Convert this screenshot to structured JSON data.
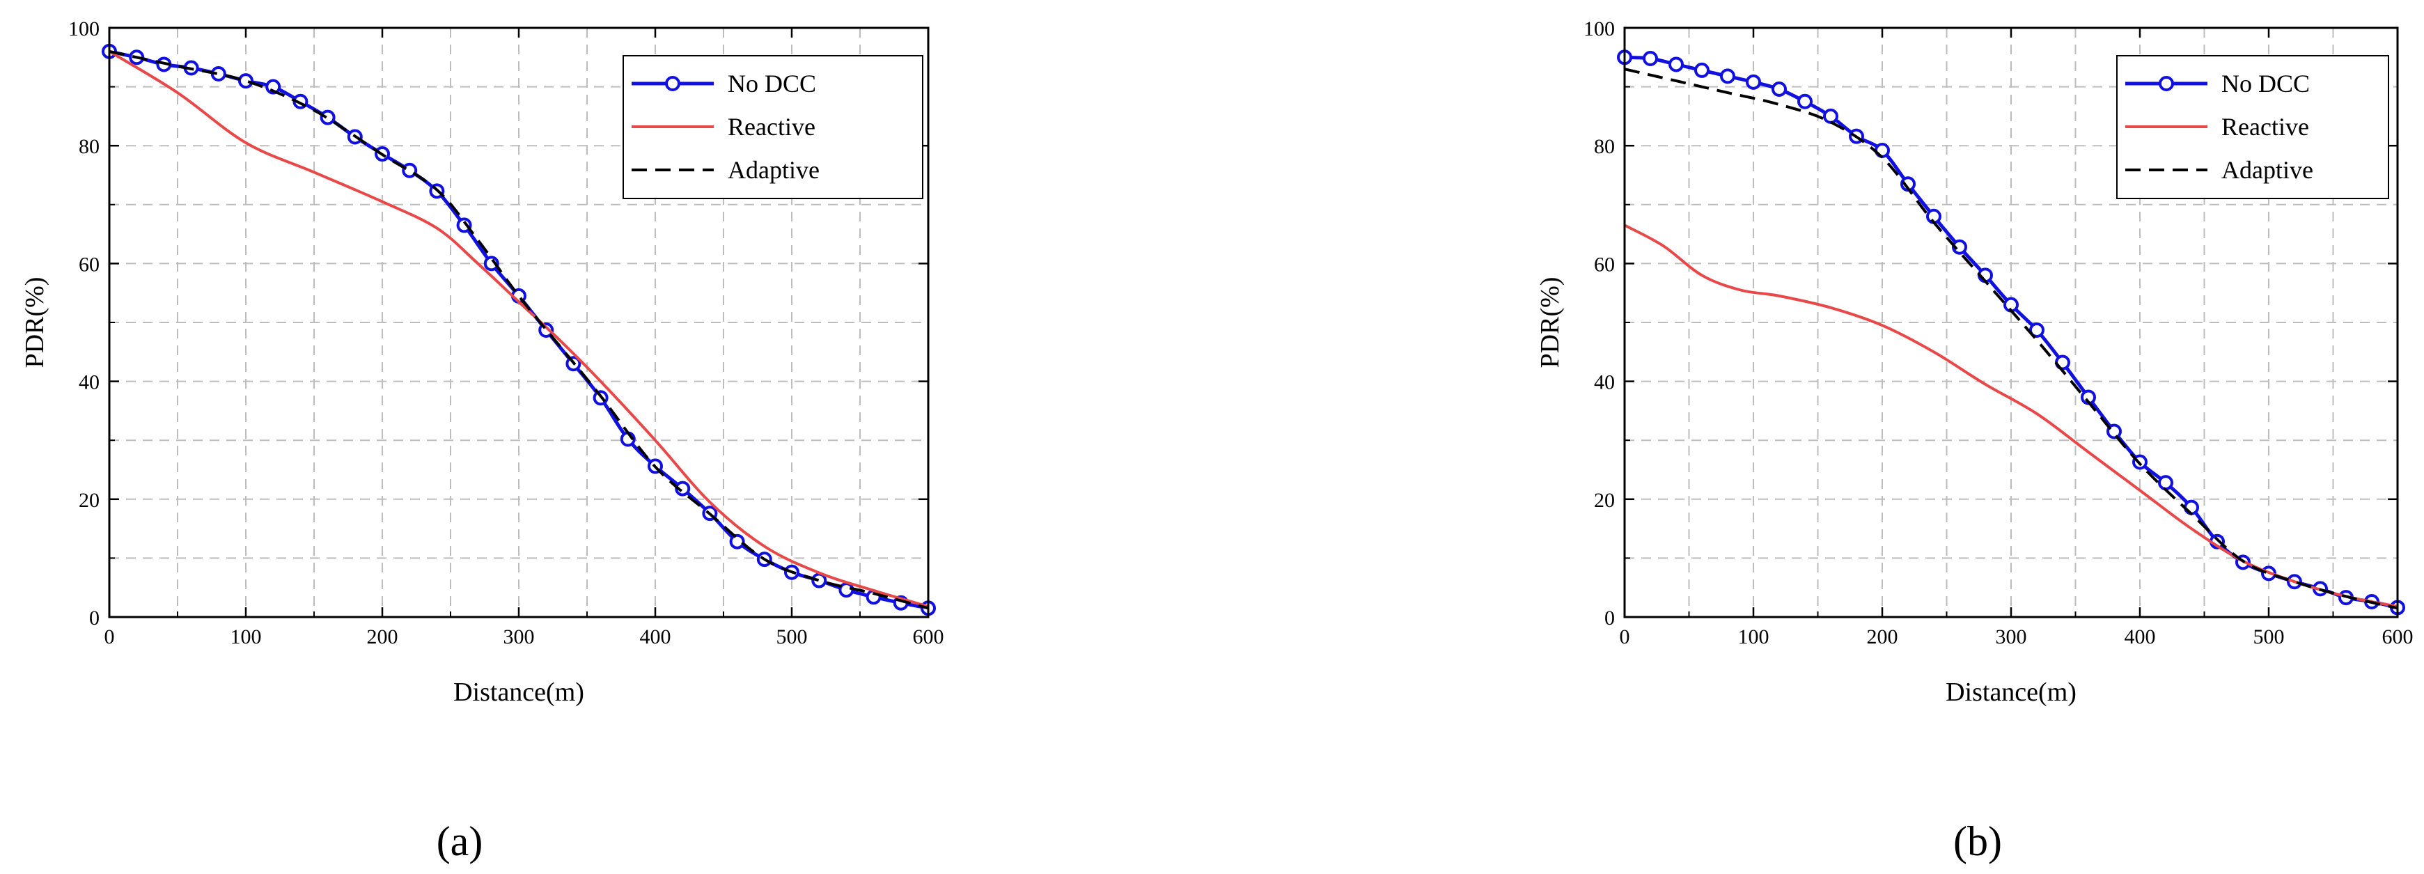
{
  "chart_data": [
    {
      "type": "line",
      "panel_label": "(a)",
      "xlabel": "Distance(m)",
      "ylabel": "PDR(%)",
      "xlim": [
        0,
        600
      ],
      "ylim": [
        0,
        100
      ],
      "xticks": [
        0,
        100,
        200,
        300,
        400,
        500,
        600
      ],
      "yticks": [
        0,
        20,
        40,
        60,
        80,
        100
      ],
      "grid": true,
      "legend_position": "top-right",
      "series": [
        {
          "name": "No DCC",
          "color": "#1010e0",
          "style": "solid-markers",
          "x": [
            0,
            20,
            40,
            60,
            80,
            100,
            120,
            140,
            160,
            180,
            200,
            220,
            240,
            260,
            280,
            300,
            320,
            340,
            360,
            380,
            400,
            420,
            440,
            460,
            480,
            500,
            520,
            540,
            560,
            580,
            600
          ],
          "y": [
            96,
            95,
            93.8,
            93.2,
            92.2,
            91,
            90,
            87.5,
            84.8,
            81.5,
            78.6,
            75.8,
            72.3,
            66.5,
            60,
            54.5,
            48.7,
            43,
            37.2,
            30.2,
            25.6,
            21.8,
            17.6,
            12.8,
            9.8,
            7.6,
            6.2,
            4.6,
            3.4,
            2.4,
            1.5
          ]
        },
        {
          "name": "Reactive",
          "color": "#e84848",
          "style": "solid",
          "x": [
            0,
            50,
            100,
            150,
            200,
            240,
            270,
            300,
            330,
            360,
            400,
            440,
            480,
            520,
            560,
            600
          ],
          "y": [
            96,
            89,
            80.5,
            75.5,
            70.5,
            66,
            60,
            53.5,
            47,
            40,
            30,
            19.5,
            12,
            7.5,
            4.5,
            1.8
          ]
        },
        {
          "name": "Adaptive",
          "color": "#000000",
          "style": "dashed",
          "x": [
            0,
            50,
            100,
            150,
            200,
            240,
            270,
            300,
            330,
            360,
            400,
            440,
            480,
            520,
            560,
            600
          ],
          "y": [
            96,
            93.5,
            91,
            86,
            78.5,
            72.5,
            64,
            54.5,
            46,
            37.5,
            25.5,
            17.5,
            9.8,
            6.2,
            4,
            1.5
          ]
        }
      ]
    },
    {
      "type": "line",
      "panel_label": "(b)",
      "xlabel": "Distance(m)",
      "ylabel": "PDR(%)",
      "xlim": [
        0,
        600
      ],
      "ylim": [
        0,
        100
      ],
      "xticks": [
        0,
        100,
        200,
        300,
        400,
        500,
        600
      ],
      "yticks": [
        0,
        20,
        40,
        60,
        80,
        100
      ],
      "grid": true,
      "legend_position": "top-right",
      "series": [
        {
          "name": "No DCC",
          "color": "#1010e0",
          "style": "solid-markers",
          "x": [
            0,
            20,
            40,
            60,
            80,
            100,
            120,
            140,
            160,
            180,
            200,
            220,
            240,
            260,
            280,
            300,
            320,
            340,
            360,
            380,
            400,
            420,
            440,
            460,
            480,
            500,
            520,
            540,
            560,
            580,
            600
          ],
          "y": [
            95,
            94.8,
            93.8,
            92.8,
            91.8,
            90.8,
            89.6,
            87.5,
            85,
            81.6,
            79.2,
            73.5,
            68,
            62.8,
            58,
            53,
            48.7,
            43.2,
            37.3,
            31.5,
            26.3,
            22.8,
            18.6,
            12.8,
            9.3,
            7.4,
            6,
            4.8,
            3.3,
            2.6,
            1.6
          ]
        },
        {
          "name": "Reactive",
          "color": "#e84848",
          "style": "solid",
          "x": [
            0,
            30,
            60,
            90,
            120,
            160,
            200,
            240,
            280,
            320,
            360,
            400,
            440,
            480,
            520,
            560,
            600
          ],
          "y": [
            66.5,
            63,
            58,
            55.5,
            54.5,
            52.5,
            49.5,
            45,
            39.5,
            34.5,
            28,
            21.5,
            15,
            9.5,
            6,
            3.5,
            1.8
          ]
        },
        {
          "name": "Adaptive",
          "color": "#000000",
          "style": "dashed",
          "x": [
            0,
            40,
            80,
            120,
            160,
            200,
            240,
            280,
            320,
            360,
            400,
            440,
            480,
            520,
            560,
            600
          ],
          "y": [
            93,
            91,
            89,
            87,
            84,
            78,
            67,
            57,
            47,
            36.5,
            26,
            17.5,
            9.5,
            6,
            3.5,
            1.5
          ]
        }
      ]
    }
  ]
}
